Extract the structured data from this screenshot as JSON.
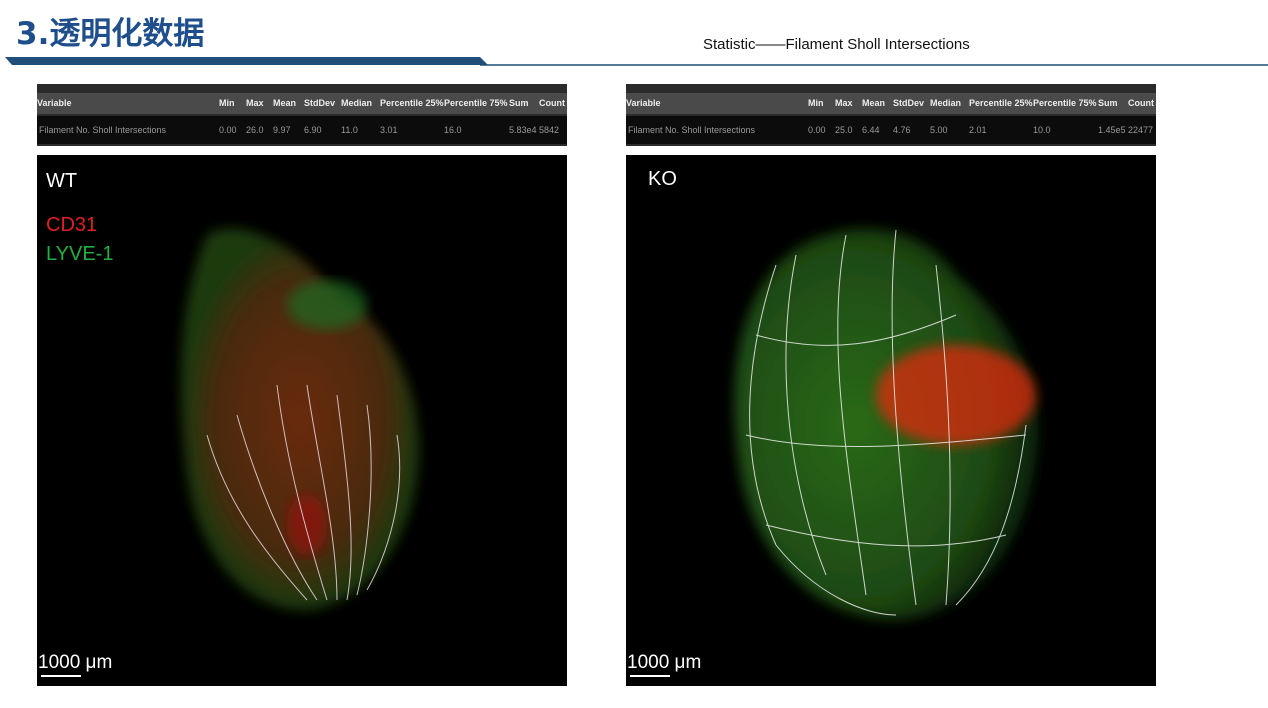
{
  "header": {
    "title": "3.透明化数据",
    "subtitle": "Statistic——Filament Sholl Intersections"
  },
  "panels": [
    {
      "table": {
        "columns": [
          "Variable",
          "Min",
          "Max",
          "Mean",
          "StdDev",
          "Median",
          "Percentile 25%",
          "Percentile 75%",
          "Sum",
          "Count"
        ],
        "row": [
          "Filament No. Sholl Intersections",
          "0.00",
          "26.0",
          "9.97",
          "6.90",
          "11.0",
          "3.01",
          "16.0",
          "5.83e4",
          "5842"
        ]
      },
      "image": {
        "label": "WT",
        "markers": [
          "CD31",
          "LYVE-1"
        ],
        "scale": "1000 μm"
      }
    },
    {
      "table": {
        "columns": [
          "Variable",
          "Min",
          "Max",
          "Mean",
          "StdDev",
          "Median",
          "Percentile 25%",
          "Percentile 75%",
          "Sum",
          "Count"
        ],
        "row": [
          "Filament No. Sholl Intersections",
          "0.00",
          "25.0",
          "6.44",
          "4.76",
          "5.00",
          "2.01",
          "10.0",
          "1.45e5",
          "22477"
        ]
      },
      "image": {
        "label": "KO",
        "scale": "1000 μm"
      }
    }
  ]
}
